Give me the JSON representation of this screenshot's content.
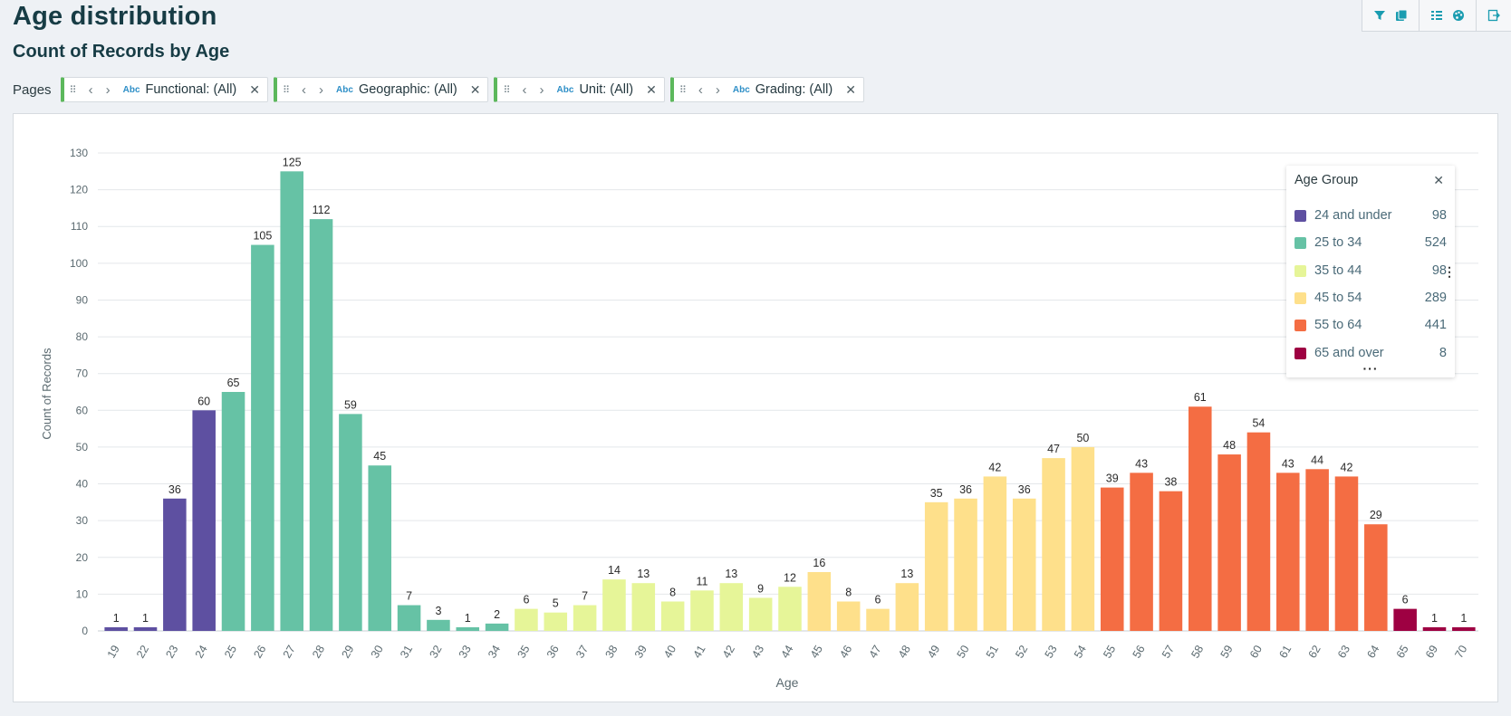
{
  "page": {
    "title": "Age distribution",
    "subtitle": "Count of Records by Age"
  },
  "toolbar": {
    "icons": [
      "filter-icon",
      "copy-icon",
      "legend-list-icon",
      "palette-icon",
      "export-icon"
    ],
    "accent": "#1a9cb0"
  },
  "filters": {
    "pages_label": "Pages",
    "chips": [
      {
        "type_label": "Abc",
        "label": "Functional: (All)"
      },
      {
        "type_label": "Abc",
        "label": "Geographic: (All)"
      },
      {
        "type_label": "Abc",
        "label": "Unit: (All)"
      },
      {
        "type_label": "Abc",
        "label": "Grading: (All)"
      }
    ]
  },
  "chart_data": {
    "type": "bar",
    "xlabel": "Age",
    "ylabel": "Count of Records",
    "ylim": [
      0,
      130
    ],
    "yticks": [
      0,
      10,
      20,
      30,
      40,
      50,
      60,
      70,
      80,
      90,
      100,
      110,
      120,
      130
    ],
    "grid": true,
    "legend_position": "top-right",
    "categories": [
      "19",
      "22",
      "23",
      "24",
      "25",
      "26",
      "27",
      "28",
      "29",
      "30",
      "31",
      "32",
      "33",
      "34",
      "35",
      "36",
      "37",
      "38",
      "39",
      "40",
      "41",
      "42",
      "43",
      "44",
      "45",
      "46",
      "47",
      "48",
      "49",
      "50",
      "51",
      "52",
      "53",
      "54",
      "55",
      "56",
      "57",
      "58",
      "59",
      "60",
      "61",
      "62",
      "63",
      "64",
      "65",
      "69",
      "70"
    ],
    "values": [
      1,
      1,
      36,
      60,
      65,
      105,
      125,
      112,
      59,
      45,
      7,
      3,
      1,
      2,
      6,
      5,
      7,
      14,
      13,
      8,
      11,
      13,
      9,
      12,
      16,
      8,
      6,
      13,
      35,
      36,
      42,
      36,
      47,
      50,
      39,
      43,
      38,
      61,
      48,
      54,
      43,
      44,
      42,
      29,
      6,
      1,
      1
    ],
    "groups": [
      0,
      0,
      0,
      0,
      1,
      1,
      1,
      1,
      1,
      1,
      1,
      1,
      1,
      1,
      2,
      2,
      2,
      2,
      2,
      2,
      2,
      2,
      2,
      2,
      3,
      3,
      3,
      3,
      3,
      3,
      3,
      3,
      3,
      3,
      4,
      4,
      4,
      4,
      4,
      4,
      4,
      4,
      4,
      4,
      5,
      5,
      5
    ],
    "legend": {
      "title": "Age Group",
      "items": [
        {
          "label": "24 and under",
          "count": "98",
          "color": "#5e50a1"
        },
        {
          "label": "25 to 34",
          "count": "524",
          "color": "#66c2a5"
        },
        {
          "label": "35 to 44",
          "count": "98",
          "color": "#e6f598"
        },
        {
          "label": "45 to 54",
          "count": "289",
          "color": "#fee08b"
        },
        {
          "label": "55 to 64",
          "count": "441",
          "color": "#f46d43"
        },
        {
          "label": "65 and over",
          "count": "8",
          "color": "#9e0142"
        }
      ]
    }
  }
}
